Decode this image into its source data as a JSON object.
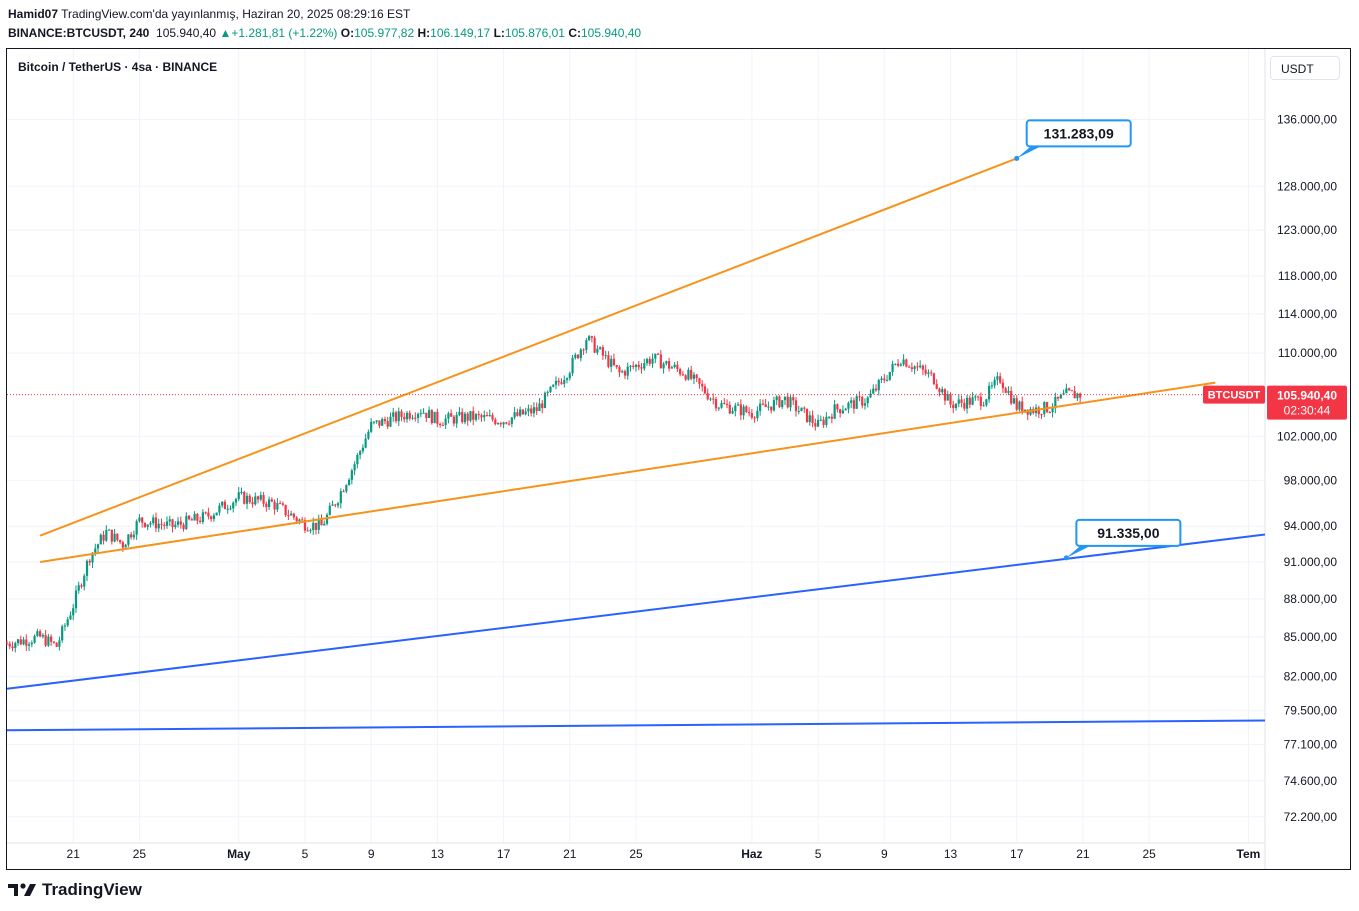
{
  "header": {
    "author": "Hamid07",
    "published_text": "TradingView.com'da yayınlanmış, Haziran 20, 2025 08:29:16 EST",
    "symbol": "BINANCE:BTCUSDT, 240",
    "price": "105.940,40",
    "change_icon": "triangle-up-icon",
    "change": "+1.281,81 (+1.22%)",
    "o_label": "O:",
    "o_value": "105.977,82",
    "h_label": "H:",
    "h_value": "106.149,17",
    "l_label": "L:",
    "l_value": "105.876,01",
    "c_label": "C:",
    "c_value": "105.940,40"
  },
  "chart_title": "Bitcoin / TetherUS · 4sa · BINANCE",
  "currency": "USDT",
  "brand": "TradingView",
  "colors": {
    "up": "#089981",
    "down": "#f23645",
    "orange_lines": "#f7931a",
    "blue_lines": "#2962ff",
    "grid": "#f0f3fa",
    "price_label": "#f23645"
  },
  "chart_data": {
    "type": "candlestick",
    "title": "Bitcoin / TetherUS · 4sa · BINANCE",
    "ylabel": "USDT",
    "log_scale": true,
    "grid": true,
    "x_ticks": [
      "21",
      "25",
      "May",
      "5",
      "9",
      "13",
      "17",
      "21",
      "25",
      "Haz",
      "5",
      "9",
      "13",
      "17",
      "21",
      "25",
      "Tem"
    ],
    "y_ticks": [
      "136.000,00",
      "128.000,00",
      "123.000,00",
      "118.000,00",
      "114.000,00",
      "110.000,00",
      "102.000,00",
      "98.000,00",
      "94.000,00",
      "91.000,00",
      "88.000,00",
      "85.000,00",
      "82.000,00",
      "79.500,00",
      "77.100,00",
      "74.600,00",
      "72.200,00"
    ],
    "ylim": [
      70500,
      145000
    ],
    "xlim": [
      "2025-04-17",
      "2025-07-02"
    ],
    "last_price_label": "105.940,40",
    "last_price_timer": "02:30:44",
    "last_price_symbol": "BTCUSDT",
    "approx_close_path": [
      {
        "date": "2025-04-17",
        "price": 84500
      },
      {
        "date": "2025-04-19",
        "price": 85000
      },
      {
        "date": "2025-04-20",
        "price": 84300
      },
      {
        "date": "2025-04-21",
        "price": 87500
      },
      {
        "date": "2025-04-22",
        "price": 91500
      },
      {
        "date": "2025-04-23",
        "price": 93500
      },
      {
        "date": "2025-04-24",
        "price": 92500
      },
      {
        "date": "2025-04-25",
        "price": 94500
      },
      {
        "date": "2025-04-27",
        "price": 94000
      },
      {
        "date": "2025-04-29",
        "price": 94800
      },
      {
        "date": "2025-05-01",
        "price": 96500
      },
      {
        "date": "2025-05-03",
        "price": 96000
      },
      {
        "date": "2025-05-05",
        "price": 94200
      },
      {
        "date": "2025-05-06",
        "price": 94000
      },
      {
        "date": "2025-05-07",
        "price": 96500
      },
      {
        "date": "2025-05-08",
        "price": 99500
      },
      {
        "date": "2025-05-09",
        "price": 103000
      },
      {
        "date": "2025-05-11",
        "price": 104000
      },
      {
        "date": "2025-05-12",
        "price": 104500
      },
      {
        "date": "2025-05-13",
        "price": 103500
      },
      {
        "date": "2025-05-15",
        "price": 103800
      },
      {
        "date": "2025-05-17",
        "price": 103500
      },
      {
        "date": "2025-05-19",
        "price": 104500
      },
      {
        "date": "2025-05-21",
        "price": 108500
      },
      {
        "date": "2025-05-22",
        "price": 111500
      },
      {
        "date": "2025-05-24",
        "price": 108000
      },
      {
        "date": "2025-05-26",
        "price": 109500
      },
      {
        "date": "2025-05-28",
        "price": 108000
      },
      {
        "date": "2025-05-30",
        "price": 105000
      },
      {
        "date": "2025-06-01",
        "price": 104200
      },
      {
        "date": "2025-06-03",
        "price": 105500
      },
      {
        "date": "2025-06-05",
        "price": 103000
      },
      {
        "date": "2025-06-06",
        "price": 104500
      },
      {
        "date": "2025-06-08",
        "price": 105500
      },
      {
        "date": "2025-06-10",
        "price": 109500
      },
      {
        "date": "2025-06-12",
        "price": 107500
      },
      {
        "date": "2025-06-13",
        "price": 105000
      },
      {
        "date": "2025-06-15",
        "price": 105500
      },
      {
        "date": "2025-06-16",
        "price": 107500
      },
      {
        "date": "2025-06-17",
        "price": 104800
      },
      {
        "date": "2025-06-18",
        "price": 104500
      },
      {
        "date": "2025-06-19",
        "price": 104700
      },
      {
        "date": "2025-06-20",
        "price": 105940
      }
    ],
    "trend_lines": [
      {
        "color": "#f7931a",
        "from": {
          "date": "2025-04-19",
          "price": 93200
        },
        "to": {
          "date": "2025-06-17",
          "price": 131283
        }
      },
      {
        "color": "#f7931a",
        "from": {
          "date": "2025-04-19",
          "price": 91000
        },
        "to": {
          "date": "2025-06-29",
          "price": 107100
        }
      },
      {
        "color": "#2962ff",
        "from": {
          "date": "2025-04-17",
          "price": 81100
        },
        "to": {
          "date": "2025-07-02",
          "price": 93300
        }
      },
      {
        "color": "#2962ff",
        "from": {
          "date": "2025-04-17",
          "price": 78100
        },
        "to": {
          "date": "2025-07-02",
          "price": 78800
        }
      }
    ],
    "callouts": [
      {
        "text": "131.283,09",
        "date": "2025-06-17",
        "price": 131283
      },
      {
        "text": "91.335,00",
        "date": "2025-06-20",
        "price": 91335
      }
    ]
  }
}
